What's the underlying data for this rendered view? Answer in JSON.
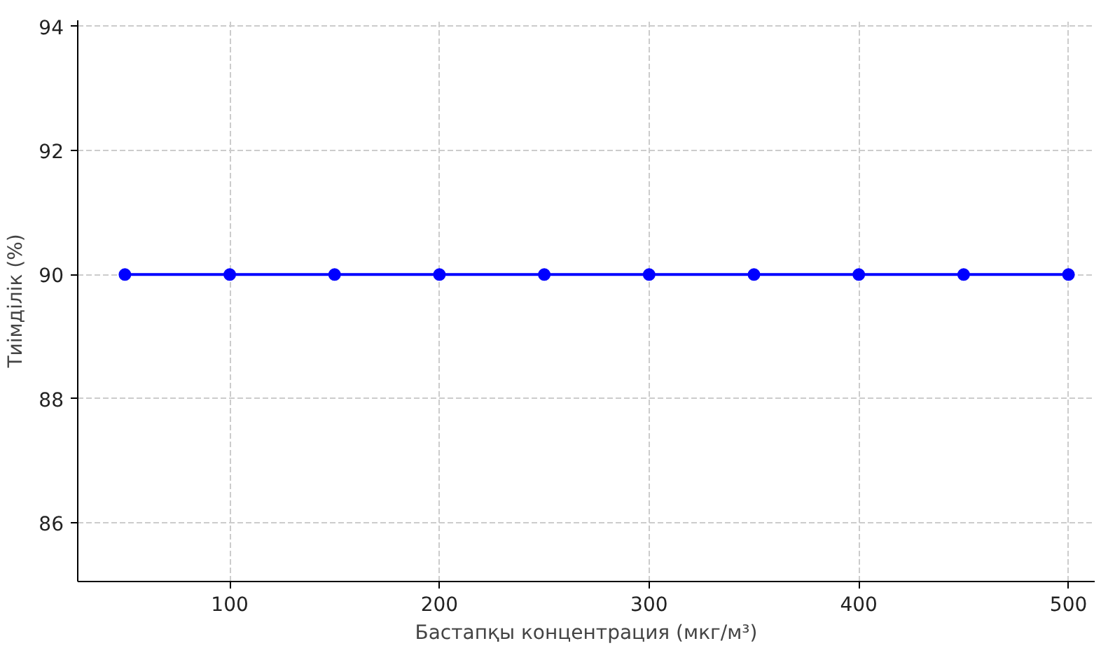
{
  "chart_data": {
    "type": "line",
    "xlabel": "Бастапқы концентрация (мкг/м³)",
    "ylabel": "Тиімділік (%)",
    "x": [
      50,
      100,
      150,
      200,
      250,
      300,
      350,
      400,
      450,
      500
    ],
    "series": [
      {
        "color": "#0000ff",
        "values": [
          90,
          90,
          90,
          90,
          90,
          90,
          90,
          90,
          90,
          90
        ]
      }
    ],
    "xlim": [
      27.5,
      512.5
    ],
    "ylim": [
      85.05,
      94.1
    ],
    "xticks": [
      100,
      200,
      300,
      400,
      500
    ],
    "yticks": [
      86,
      88,
      90,
      92,
      94
    ],
    "grid": true,
    "marker": "circle",
    "line_style": "solid"
  }
}
